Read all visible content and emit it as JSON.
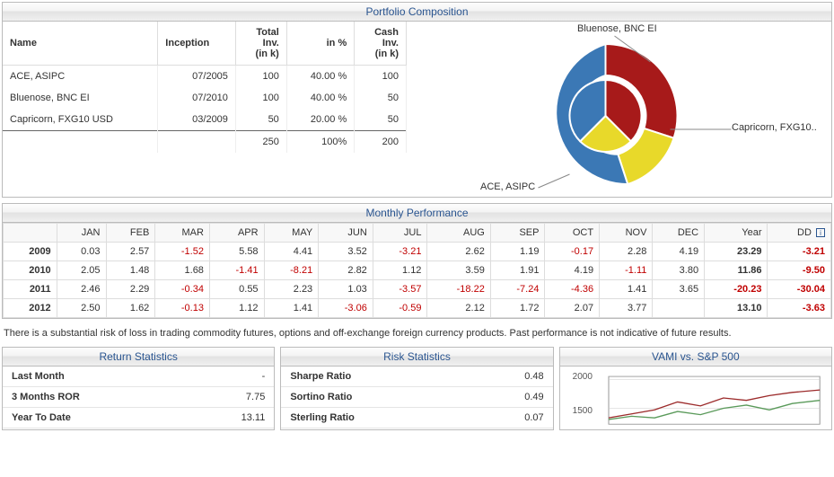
{
  "composition": {
    "title": "Portfolio Composition",
    "columns": [
      "Name",
      "Inception",
      "Total Inv. (in k)",
      "in %",
      "Cash Inv. (in k)"
    ],
    "rows": [
      {
        "name": "ACE, ASIPC",
        "inception": "07/2005",
        "total": "100",
        "pct": "40.00 %",
        "cash": "100",
        "color": "#3b78b5"
      },
      {
        "name": "Bluenose, BNC EI",
        "inception": "07/2010",
        "total": "100",
        "pct": "40.00 %",
        "cash": "50",
        "color": "#a71a1a"
      },
      {
        "name": "Capricorn, FXG10 USD",
        "inception": "03/2009",
        "total": "50",
        "pct": "20.00 %",
        "cash": "50",
        "color": "#e8d92a"
      }
    ],
    "totals": {
      "total": "250",
      "pct": "100%",
      "cash": "200"
    },
    "pie_labels": {
      "top": "Bluenose, BNC EI",
      "right": "Capricorn, FXG10..",
      "bottom": "ACE, ASIPC"
    }
  },
  "performance": {
    "title": "Monthly Performance",
    "months": [
      "JAN",
      "FEB",
      "MAR",
      "APR",
      "MAY",
      "JUN",
      "JUL",
      "AUG",
      "SEP",
      "OCT",
      "NOV",
      "DEC",
      "Year",
      "DD"
    ],
    "rows": [
      {
        "year": "2009",
        "vals": [
          "0.03",
          "2.57",
          "-1.52",
          "5.58",
          "4.41",
          "3.52",
          "-3.21",
          "2.62",
          "1.19",
          "-0.17",
          "2.28",
          "4.19",
          "23.29",
          "-3.21"
        ]
      },
      {
        "year": "2010",
        "vals": [
          "2.05",
          "1.48",
          "1.68",
          "-1.41",
          "-8.21",
          "2.82",
          "1.12",
          "3.59",
          "1.91",
          "4.19",
          "-1.11",
          "3.80",
          "11.86",
          "-9.50"
        ]
      },
      {
        "year": "2011",
        "vals": [
          "2.46",
          "2.29",
          "-0.34",
          "0.55",
          "2.23",
          "1.03",
          "-3.57",
          "-18.22",
          "-7.24",
          "-4.36",
          "1.41",
          "3.65",
          "-20.23",
          "-30.04"
        ]
      },
      {
        "year": "2012",
        "vals": [
          "2.50",
          "1.62",
          "-0.13",
          "1.12",
          "1.41",
          "-3.06",
          "-0.59",
          "2.12",
          "1.72",
          "2.07",
          "3.77",
          "",
          "13.10",
          "-3.63"
        ]
      }
    ]
  },
  "disclaimer": "There is a substantial risk of loss in trading commodity futures, options and off-exchange foreign currency products. Past performance is not indicative of future results.",
  "return_stats": {
    "title": "Return Statistics",
    "rows": [
      {
        "label": "Last Month",
        "val": "-"
      },
      {
        "label": "3 Months ROR",
        "val": "7.75"
      },
      {
        "label": "Year To Date",
        "val": "13.11"
      }
    ]
  },
  "risk_stats": {
    "title": "Risk Statistics",
    "rows": [
      {
        "label": "Sharpe Ratio",
        "val": "0.48"
      },
      {
        "label": "Sortino Ratio",
        "val": "0.49"
      },
      {
        "label": "Sterling Ratio",
        "val": "0.07"
      }
    ]
  },
  "vami": {
    "title": "VAMI vs. S&P 500",
    "yticks": [
      "2000",
      "1500"
    ],
    "series": [
      {
        "name": "VAMI",
        "color": "#9c2b2b"
      },
      {
        "name": "S&P 500",
        "color": "#5a9a5a"
      }
    ]
  }
}
